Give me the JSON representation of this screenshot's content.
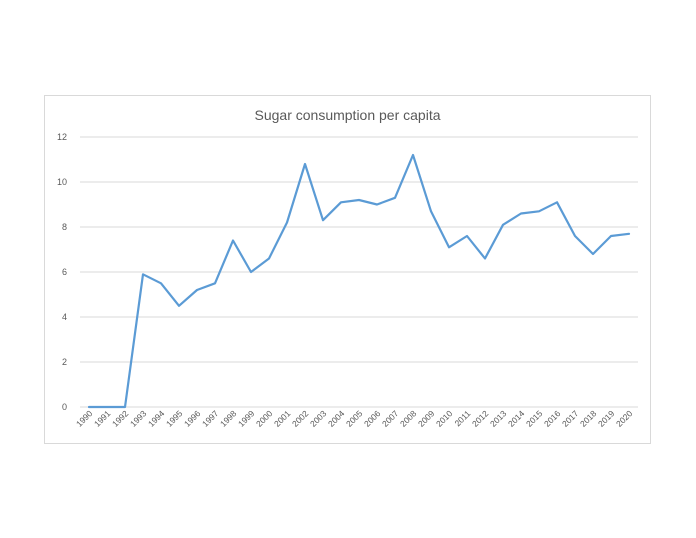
{
  "chart_data": {
    "type": "line",
    "title": "Sugar consumption per capita",
    "xlabel": "",
    "ylabel": "",
    "x": [
      "1990",
      "1991",
      "1992",
      "1993",
      "1994",
      "1995",
      "1996",
      "1997",
      "1998",
      "1999",
      "2000",
      "2001",
      "2002",
      "2003",
      "2004",
      "2005",
      "2006",
      "2007",
      "2008",
      "2009",
      "2010",
      "2011",
      "2012",
      "2013",
      "2014",
      "2015",
      "2016",
      "2017",
      "2018",
      "2019",
      "2020"
    ],
    "series": [
      {
        "name": "",
        "color": "#5b9bd5",
        "values": [
          0,
          0,
          0,
          5.9,
          5.5,
          4.5,
          5.2,
          5.5,
          7.4,
          6.0,
          6.6,
          8.2,
          10.8,
          8.3,
          9.1,
          9.2,
          9.0,
          9.3,
          11.2,
          8.7,
          7.1,
          7.6,
          6.6,
          8.1,
          8.6,
          8.7,
          9.1,
          7.6,
          6.8,
          7.6,
          7.7
        ]
      }
    ],
    "yticks": [
      0,
      2,
      4,
      6,
      8,
      10,
      12
    ],
    "ylim": [
      0,
      12
    ],
    "grid": "horizontal",
    "legend": "none"
  }
}
